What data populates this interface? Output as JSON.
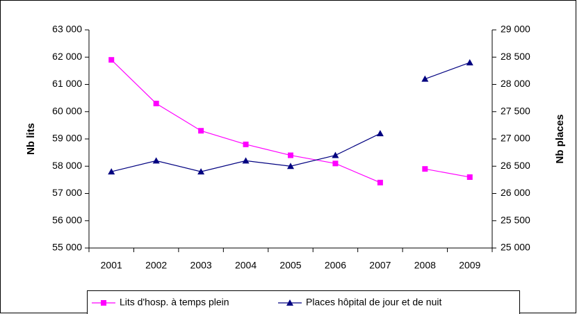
{
  "chart_data": {
    "type": "line",
    "categories": [
      "2001",
      "2002",
      "2003",
      "2004",
      "2005",
      "2006",
      "2007",
      "2008",
      "2009"
    ],
    "line_break_after": "2007",
    "y_label": "Nb lits",
    "y2_label": "Nb places",
    "ylim": [
      55000,
      63000
    ],
    "yticks": [
      {
        "value": 55000,
        "label": "55 000"
      },
      {
        "value": 56000,
        "label": "56 000"
      },
      {
        "value": 57000,
        "label": "57 000"
      },
      {
        "value": 58000,
        "label": "58 000"
      },
      {
        "value": 59000,
        "label": "59 000"
      },
      {
        "value": 60000,
        "label": "60 000"
      },
      {
        "value": 61000,
        "label": "61 000"
      },
      {
        "value": 62000,
        "label": "62 000"
      },
      {
        "value": 63000,
        "label": "63 000"
      }
    ],
    "y2lim": [
      25000,
      29000
    ],
    "y2ticks": [
      {
        "value": 25000,
        "label": "25 000"
      },
      {
        "value": 25500,
        "label": "25 500"
      },
      {
        "value": 26000,
        "label": "26 000"
      },
      {
        "value": 26500,
        "label": "26 500"
      },
      {
        "value": 27000,
        "label": "27 000"
      },
      {
        "value": 27500,
        "label": "27 500"
      },
      {
        "value": 28000,
        "label": "28 000"
      },
      {
        "value": 28500,
        "label": "28 500"
      },
      {
        "value": 29000,
        "label": "29 000"
      }
    ],
    "legend": "bottom",
    "series": [
      {
        "name": "Lits d'hosp. à temps plein",
        "color": "#ff00ff",
        "marker": "square",
        "values": [
          61900,
          60300,
          59300,
          58800,
          58400,
          58100,
          57400,
          57900,
          57600
        ]
      },
      {
        "name": "Places hôpital de jour et de nuit",
        "color": "#000080",
        "marker": "triangle",
        "axis": "y2",
        "values": [
          26400,
          26600,
          26400,
          26600,
          26500,
          26700,
          27100,
          28100,
          28400
        ]
      }
    ]
  }
}
